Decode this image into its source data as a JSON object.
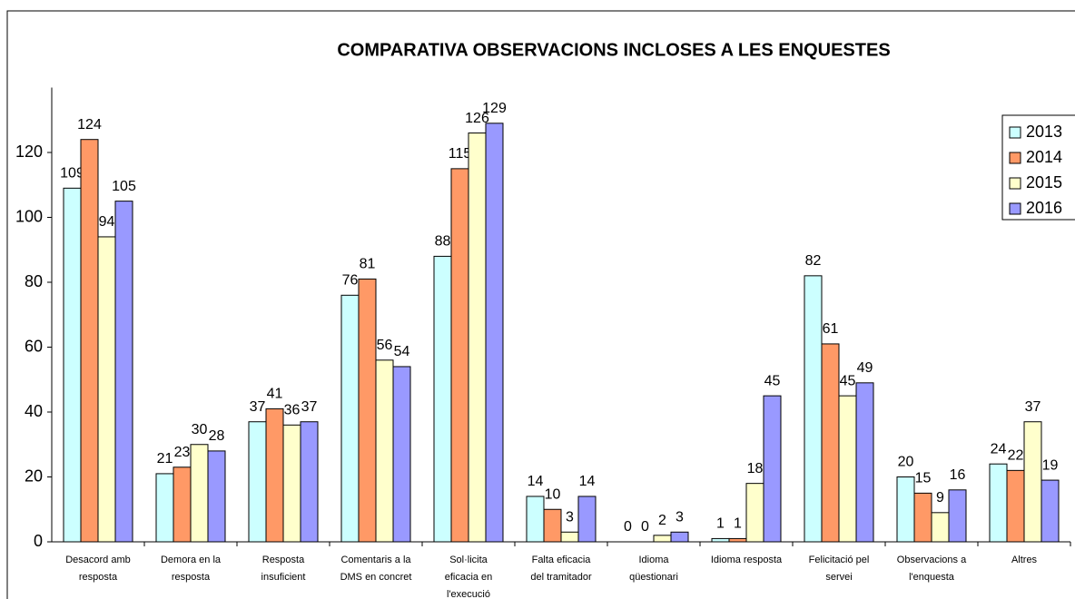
{
  "chart_data": {
    "type": "bar",
    "title": "COMPARATIVA OBSERVACIONS INCLOSES A LES ENQUESTES",
    "categories": [
      [
        "Desacord amb",
        "resposta"
      ],
      [
        "Demora en la",
        "resposta"
      ],
      [
        "Resposta",
        "insuficient"
      ],
      [
        "Comentaris a la",
        "DMS en concret"
      ],
      [
        "Sol·licita",
        "eficacia en",
        "l'execució"
      ],
      [
        "Falta eficacia",
        "del tramitador"
      ],
      [
        "Idioma",
        "qüestionari"
      ],
      [
        "Idioma resposta"
      ],
      [
        "Felicitació pel",
        "servei"
      ],
      [
        "Observacions a",
        "l'enquesta"
      ],
      [
        "Altres"
      ]
    ],
    "series": [
      {
        "name": "2013",
        "color": "#ccffff",
        "values": [
          109,
          21,
          37,
          76,
          88,
          14,
          0,
          1,
          82,
          20,
          24
        ]
      },
      {
        "name": "2014",
        "color": "#ff9966",
        "values": [
          124,
          23,
          41,
          81,
          115,
          10,
          0,
          1,
          61,
          15,
          22
        ]
      },
      {
        "name": "2015",
        "color": "#ffffcc",
        "values": [
          94,
          30,
          36,
          56,
          126,
          3,
          2,
          18,
          45,
          9,
          37
        ]
      },
      {
        "name": "2016",
        "color": "#9999ff",
        "values": [
          105,
          28,
          37,
          54,
          129,
          14,
          3,
          45,
          49,
          16,
          19
        ]
      }
    ],
    "ylim": [
      0,
      140
    ],
    "yticks": [
      0,
      20,
      40,
      60,
      80,
      100,
      120
    ],
    "legend": "right"
  }
}
